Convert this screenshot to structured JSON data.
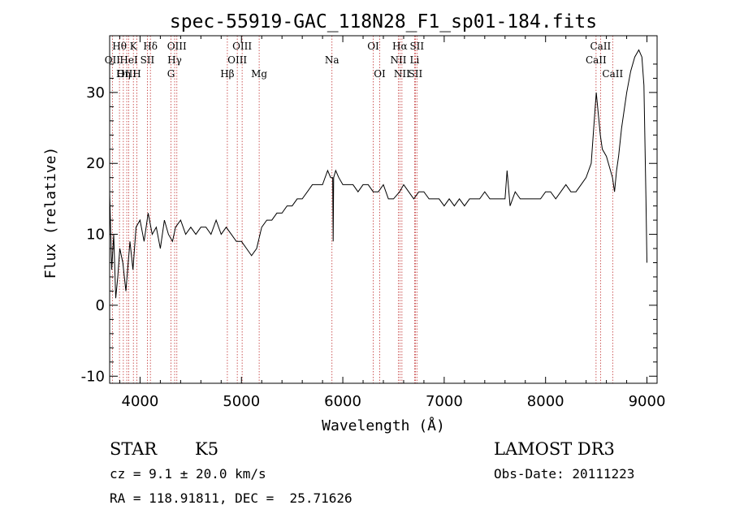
{
  "chart_data": {
    "type": "line",
    "title": "spec-55919-GAC_118N28_F1_sp01-184.fits",
    "xlabel": "Wavelength (Å)",
    "ylabel": "Flux (relative)",
    "xlim": [
      3700,
      9100
    ],
    "ylim": [
      -11,
      38
    ],
    "xticks": [
      4000,
      5000,
      6000,
      7000,
      8000,
      9000
    ],
    "yticks": [
      -10,
      0,
      10,
      20,
      30
    ],
    "grid": false,
    "series": [
      {
        "x": [
          3700,
          3720,
          3740,
          3760,
          3780,
          3800,
          3830,
          3860,
          3900,
          3930,
          3960,
          4000,
          4040,
          4080,
          4120,
          4160,
          4200,
          4240,
          4280,
          4320,
          4350,
          4400,
          4450,
          4500,
          4550,
          4600,
          4650,
          4700,
          4750,
          4800,
          4850,
          4900,
          4950,
          5000,
          5050,
          5100,
          5150,
          5200,
          5250,
          5300,
          5350,
          5400,
          5450,
          5500,
          5550,
          5600,
          5650,
          5700,
          5750,
          5800,
          5850,
          5880,
          5900,
          5905,
          5910,
          5930,
          5960,
          6000,
          6050,
          6100,
          6150,
          6200,
          6250,
          6300,
          6350,
          6400,
          6450,
          6500,
          6560,
          6600,
          6650,
          6700,
          6750,
          6800,
          6850,
          6900,
          6950,
          7000,
          7050,
          7100,
          7150,
          7200,
          7250,
          7300,
          7350,
          7400,
          7450,
          7500,
          7550,
          7600,
          7620,
          7650,
          7700,
          7750,
          7800,
          7850,
          7900,
          7950,
          8000,
          8050,
          8100,
          8150,
          8200,
          8250,
          8300,
          8350,
          8400,
          8450,
          8500,
          8520,
          8540,
          8560,
          8600,
          8640,
          8660,
          8680,
          8700,
          8720,
          8750,
          8800,
          8840,
          8880,
          8920,
          8950,
          8970,
          8990,
          9000
        ],
        "y": [
          16,
          5,
          10,
          1,
          4,
          8,
          6,
          2,
          9,
          5,
          11,
          12,
          9,
          13,
          10,
          11,
          8,
          12,
          10,
          9,
          11,
          12,
          10,
          11,
          10,
          11,
          11,
          10,
          12,
          10,
          11,
          10,
          9,
          9,
          8,
          7,
          8,
          11,
          12,
          12,
          13,
          13,
          14,
          14,
          15,
          15,
          16,
          17,
          17,
          17,
          19,
          18,
          18,
          9,
          18,
          19,
          18,
          17,
          17,
          17,
          16,
          17,
          17,
          16,
          16,
          17,
          15,
          15,
          16,
          17,
          16,
          15,
          16,
          16,
          15,
          15,
          15,
          14,
          15,
          14,
          15,
          14,
          15,
          15,
          15,
          16,
          15,
          15,
          15,
          15,
          19,
          14,
          16,
          15,
          15,
          15,
          15,
          15,
          16,
          16,
          15,
          16,
          17,
          16,
          16,
          17,
          18,
          20,
          30,
          27,
          24,
          22,
          21,
          19,
          18,
          16,
          19,
          21,
          25,
          30,
          33,
          35,
          36,
          35,
          31,
          15,
          6
        ]
      }
    ],
    "line_labels": [
      {
        "text": "Hθ",
        "wave": 3797,
        "row": 1
      },
      {
        "text": "OII",
        "wave": 3727,
        "row": 2
      },
      {
        "text": "OIII",
        "wave": 3869,
        "row": 3
      },
      {
        "text": "K",
        "wave": 3934,
        "row": 1
      },
      {
        "text": "HeI",
        "wave": 3889,
        "row": 2
      },
      {
        "text": "Hη",
        "wave": 3835,
        "row": 3
      },
      {
        "text": "Hδ",
        "wave": 4102,
        "row": 1
      },
      {
        "text": "SII",
        "wave": 4072,
        "row": 2
      },
      {
        "text": "H",
        "wave": 3968,
        "row": 3
      },
      {
        "text": "OIII",
        "wave": 4363,
        "row": 1
      },
      {
        "text": "Hγ",
        "wave": 4341,
        "row": 2
      },
      {
        "text": "G",
        "wave": 4305,
        "row": 3
      },
      {
        "text": "OIII",
        "wave": 5007,
        "row": 1
      },
      {
        "text": "OIII",
        "wave": 4959,
        "row": 2
      },
      {
        "text": "Hβ",
        "wave": 4861,
        "row": 3
      },
      {
        "text": "Mg",
        "wave": 5175,
        "row": 3
      },
      {
        "text": "Na",
        "wave": 5893,
        "row": 2
      },
      {
        "text": "OI",
        "wave": 6300,
        "row": 1
      },
      {
        "text": "OI",
        "wave": 6364,
        "row": 3
      },
      {
        "text": "Hα",
        "wave": 6563,
        "row": 1
      },
      {
        "text": "SII",
        "wave": 6731,
        "row": 1
      },
      {
        "text": "NII",
        "wave": 6548,
        "row": 2
      },
      {
        "text": "Li",
        "wave": 6708,
        "row": 2
      },
      {
        "text": "NII",
        "wave": 6583,
        "row": 3
      },
      {
        "text": "SII",
        "wave": 6716,
        "row": 3
      },
      {
        "text": "CaII",
        "wave": 8542,
        "row": 1
      },
      {
        "text": "CaII",
        "wave": 8498,
        "row": 2
      },
      {
        "text": "CaII",
        "wave": 8662,
        "row": 3
      }
    ],
    "line_waves": [
      3727,
      3797,
      3835,
      3869,
      3889,
      3934,
      3968,
      4072,
      4102,
      4305,
      4341,
      4363,
      4861,
      4959,
      5007,
      5175,
      5893,
      6300,
      6364,
      6548,
      6563,
      6583,
      6708,
      6716,
      6731,
      8498,
      8542,
      8662
    ]
  },
  "footer": {
    "object_class": "STAR",
    "subclass": "K5",
    "redshift": "cz = 9.1 ± 20.0 km/s",
    "coords": "RA = 118.91811, DEC =  25.71626",
    "survey": "LAMOST DR3",
    "obs_date": "Obs-Date: 20111223"
  }
}
